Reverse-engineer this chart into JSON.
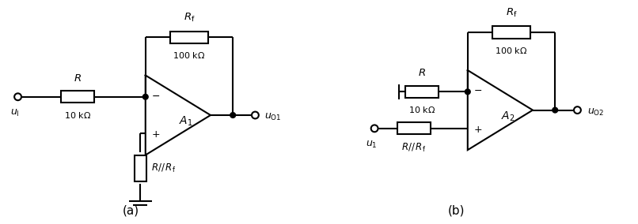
{
  "fig_width": 8.06,
  "fig_height": 2.84,
  "dpi": 100,
  "bg_color": "#ffffff",
  "line_color": "#000000",
  "line_width": 1.5,
  "xlim": [
    0,
    10
  ],
  "ylim": [
    0,
    3.54
  ],
  "circuit_a": {
    "label": "(a)",
    "u1_text": "$u$",
    "u1_sub": "I",
    "uo1_text": "$u$",
    "uo1_sub": "O1",
    "R_label": "$R$",
    "R_val": "10 k$\\Omega$",
    "Rf_label": "$R_\\mathrm{f}$",
    "Rf_val": "100 k$\\Omega$",
    "Rp_label": "$R//\\,R_\\mathrm{f}$",
    "amp_label": "$A_1$"
  },
  "circuit_b": {
    "label": "(b)",
    "u1_text": "$u$",
    "u1_sub": "1",
    "uo2_text": "$u$",
    "uo2_sub": "O2",
    "R_label": "$R$",
    "R_val": "10 k$\\Omega$",
    "Rf_label": "$R_\\mathrm{f}$",
    "Rf_val": "100 k$\\Omega$",
    "Rp_label": "$R//\\,R_\\mathrm{f}$",
    "amp_label": "$A_2$"
  }
}
